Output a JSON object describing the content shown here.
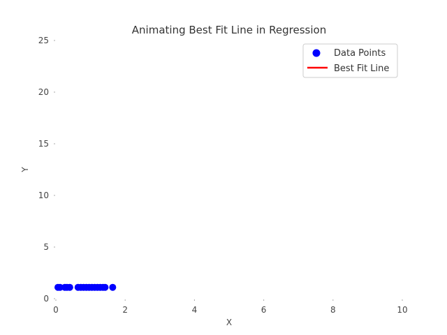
{
  "chart_data": {
    "type": "scatter",
    "title": "Animating Best Fit Line in Regression",
    "xlabel": "X",
    "ylabel": "Y",
    "xlim": [
      0,
      10
    ],
    "ylim": [
      0,
      25
    ],
    "xticks": [
      0,
      2,
      4,
      6,
      8,
      10
    ],
    "yticks": [
      0,
      5,
      10,
      15,
      20,
      25
    ],
    "grid": false,
    "legend_position": "top-right",
    "legend": [
      "Data Points",
      "Best Fit Line"
    ],
    "colors": {
      "points": "#0000ff",
      "line": "#ff0000"
    },
    "series": [
      {
        "name": "Data Points",
        "kind": "scatter",
        "x": [
          0.06,
          0.12,
          0.26,
          0.32,
          0.4,
          0.64,
          0.72,
          0.8,
          0.88,
          0.96,
          1.04,
          1.12,
          1.2,
          1.28,
          1.36,
          1.42,
          1.64
        ],
        "y": [
          1.1,
          1.1,
          1.1,
          1.1,
          1.1,
          1.1,
          1.1,
          1.1,
          1.1,
          1.1,
          1.1,
          1.1,
          1.1,
          1.1,
          1.1,
          1.1,
          1.1
        ]
      },
      {
        "name": "Best Fit Line",
        "kind": "line",
        "x": [],
        "y": []
      }
    ]
  }
}
